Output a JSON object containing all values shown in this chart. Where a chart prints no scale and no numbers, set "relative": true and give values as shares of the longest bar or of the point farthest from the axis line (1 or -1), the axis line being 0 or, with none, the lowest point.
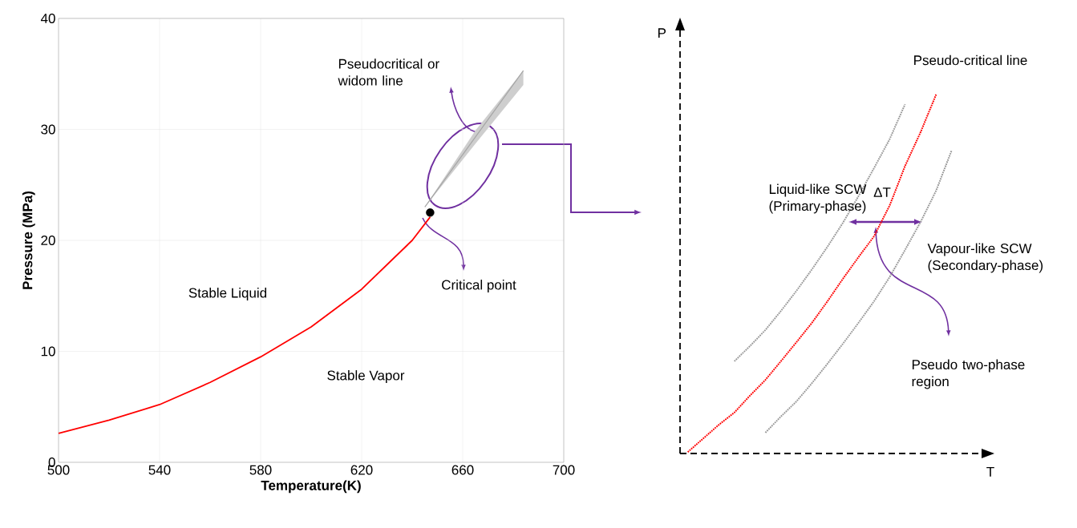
{
  "chart_data": [
    {
      "type": "line",
      "xlabel": "Temperature(K)",
      "ylabel": "Pressure (MPa)",
      "series": [
        {
          "type": "line",
          "color": "#ff0000",
          "x": [
            500,
            520,
            540,
            560,
            580,
            600,
            620,
            640,
            647.1
          ],
          "values": [
            2.6,
            3.8,
            5.2,
            7.2,
            9.5,
            12.2,
            15.6,
            20.0,
            22.1
          ]
        },
        {
          "type": "line",
          "color": "#a6a6a6",
          "x": [
            645,
            665,
            684
          ],
          "values": [
            23.0,
            29.3,
            35.3
          ],
          "lower": [
            23.0,
            28.7,
            34.0
          ],
          "upper": [
            23.0,
            29.9,
            35.3
          ]
        },
        {
          "type": "scatter",
          "marker": "circle",
          "color": "#000000",
          "x": [
            647.1
          ],
          "values": [
            22.5
          ]
        }
      ],
      "xlim": [
        500,
        700
      ],
      "ylim": [
        0,
        40
      ],
      "xticks": [
        500,
        540,
        580,
        620,
        660,
        700
      ],
      "yticks": [
        0,
        10,
        20,
        30,
        40
      ],
      "grid": true,
      "annotations": [
        "Pseudocritical or widom line",
        "Critical point",
        "Stable Liquid",
        "Stable Vapor"
      ]
    },
    {
      "type": "line",
      "relative": true,
      "xlabel": "T",
      "ylabel": "P",
      "line_style": "dotted",
      "categories": [
        null,
        null,
        null,
        null,
        null,
        null,
        null,
        null,
        null,
        null,
        null,
        null,
        null,
        null,
        null,
        null,
        null,
        null,
        null,
        null
      ],
      "series": [
        {
          "color": "#ff0000",
          "values": [
            0.004,
            0.042,
            0.08,
            0.114,
            0.161,
            0.205,
            0.257,
            0.31,
            0.364,
            0.424,
            0.487,
            0.547,
            0.605,
            0.69,
            0.801,
            0.895,
            1.0,
            null,
            null,
            null
          ]
        },
        {
          "color": "#999999",
          "values": [
            null,
            null,
            null,
            0.257,
            0.299,
            0.344,
            0.397,
            0.453,
            0.513,
            0.576,
            0.643,
            0.717,
            0.795,
            0.875,
            0.973,
            null,
            null,
            null,
            null,
            null
          ]
        },
        {
          "color": "#999999",
          "values": [
            null,
            null,
            null,
            null,
            null,
            0.058,
            0.103,
            0.145,
            0.196,
            0.25,
            0.306,
            0.364,
            0.424,
            0.491,
            0.567,
            0.645,
            0.732,
            0.844,
            null,
            null
          ]
        }
      ],
      "annotations": [
        "Pseudo-critical line",
        "Liquid-like SCW (Primary-phase)",
        "ΔT",
        "Vapour-like SCW (Secondary-phase)",
        "Pseudo two-phase region"
      ]
    }
  ]
}
